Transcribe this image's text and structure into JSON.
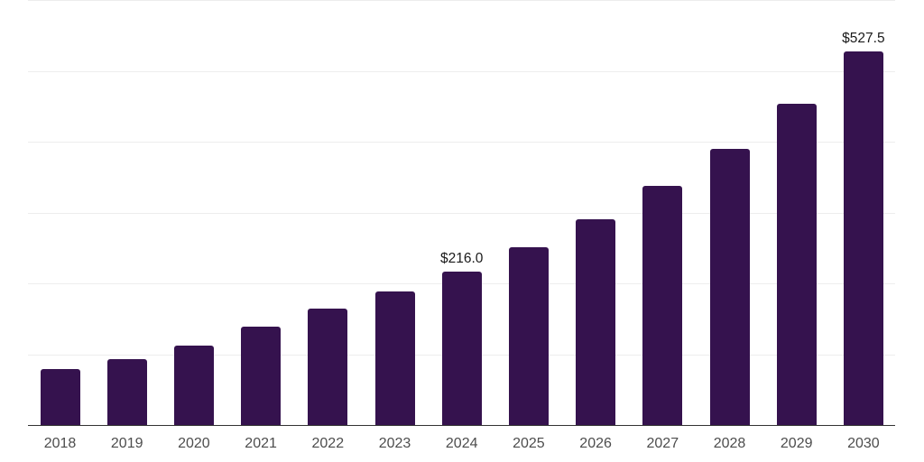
{
  "chart_data": {
    "type": "bar",
    "title": "",
    "categories": [
      "2018",
      "2019",
      "2020",
      "2021",
      "2022",
      "2023",
      "2024",
      "2025",
      "2026",
      "2027",
      "2028",
      "2029",
      "2030"
    ],
    "values": [
      79,
      93,
      112,
      139,
      164,
      188,
      216.0,
      251,
      290,
      337,
      390,
      454,
      527.5
    ],
    "data_labels": {
      "2024": "$216.0",
      "2030": "$527.5"
    },
    "xlabel": "",
    "ylabel": "",
    "ylim": [
      0,
      600
    ],
    "gridline_step": 100,
    "grid": true,
    "y_tick_labels_visible": false,
    "legend_position": "none",
    "colors": {
      "bar": "#35124E",
      "axis": "#333333",
      "tick_label": "#4d4d4d",
      "data_label": "#1a1a1a",
      "gridline": "#ededed",
      "background": "#ffffff"
    }
  }
}
